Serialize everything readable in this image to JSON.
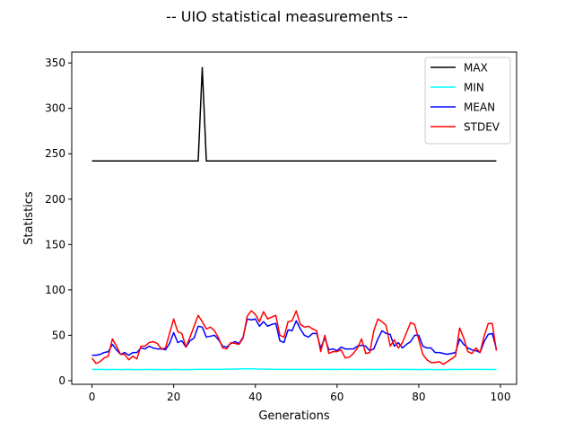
{
  "chart_data": {
    "type": "line",
    "title": "-- UIO statistical measurements --",
    "xlabel": "Generations",
    "ylabel": "Statistics",
    "xlim": [
      -4.95,
      103.95
    ],
    "ylim": [
      -4.0,
      362.0
    ],
    "xticks": [
      0,
      20,
      40,
      60,
      80,
      100
    ],
    "yticks": [
      0,
      50,
      100,
      150,
      200,
      250,
      300,
      350
    ],
    "grid": false,
    "legend_position": "top-right",
    "x": [
      0,
      1,
      2,
      3,
      4,
      5,
      6,
      7,
      8,
      9,
      10,
      11,
      12,
      13,
      14,
      15,
      16,
      17,
      18,
      19,
      20,
      21,
      22,
      23,
      24,
      25,
      26,
      27,
      28,
      29,
      30,
      31,
      32,
      33,
      34,
      35,
      36,
      37,
      38,
      39,
      40,
      41,
      42,
      43,
      44,
      45,
      46,
      47,
      48,
      49,
      50,
      51,
      52,
      53,
      54,
      55,
      56,
      57,
      58,
      59,
      60,
      61,
      62,
      63,
      64,
      65,
      66,
      67,
      68,
      69,
      70,
      71,
      72,
      73,
      74,
      75,
      76,
      77,
      78,
      79,
      80,
      81,
      82,
      83,
      84,
      85,
      86,
      87,
      88,
      89,
      90,
      91,
      92,
      93,
      94,
      95,
      96,
      97,
      98,
      99
    ],
    "series": [
      {
        "name": "MAX",
        "color": "#000000",
        "values": [
          242,
          242,
          242,
          242,
          242,
          242,
          242,
          242,
          242,
          242,
          242,
          242,
          242,
          242,
          242,
          242,
          242,
          242,
          242,
          242,
          242,
          242,
          242,
          242,
          242,
          242,
          242,
          345,
          242,
          242,
          242,
          242,
          242,
          242,
          242,
          242,
          242,
          242,
          242,
          242,
          242,
          242,
          242,
          242,
          242,
          242,
          242,
          242,
          242,
          242,
          242,
          242,
          242,
          242,
          242,
          242,
          242,
          242,
          242,
          242,
          242,
          242,
          242,
          242,
          242,
          242,
          242,
          242,
          242,
          242,
          242,
          242,
          242,
          242,
          242,
          242,
          242,
          242,
          242,
          242,
          242,
          242,
          242,
          242,
          242,
          242,
          242,
          242,
          242,
          242,
          242,
          242,
          242,
          242,
          242,
          242,
          242,
          242,
          242,
          242
        ]
      },
      {
        "name": "MIN",
        "color": "#00ffff",
        "values": [
          12.5,
          12.3,
          12.4,
          12.3,
          12.2,
          12.4,
          12.3,
          12.2,
          12.3,
          12.4,
          12.2,
          12.3,
          12.2,
          12.3,
          12.4,
          12.2,
          12.3,
          12.2,
          12.3,
          12.2,
          12.4,
          12.3,
          12.2,
          12.3,
          12.2,
          12.3,
          12.4,
          12.6,
          12.5,
          12.5,
          12.6,
          12.5,
          12.6,
          12.7,
          12.7,
          12.8,
          12.9,
          13.0,
          13.1,
          13.0,
          12.9,
          12.8,
          12.7,
          12.6,
          12.6,
          12.5,
          12.4,
          12.4,
          12.5,
          12.4,
          12.3,
          12.4,
          12.5,
          12.4,
          12.3,
          12.4,
          12.5,
          12.4,
          12.3,
          12.4,
          12.3,
          12.4,
          12.5,
          12.4,
          12.3,
          12.4,
          12.3,
          12.4,
          12.4,
          12.3,
          12.4,
          12.3,
          12.4,
          12.5,
          12.4,
          12.3,
          12.4,
          12.3,
          12.4,
          12.3,
          12.2,
          12.3,
          12.4,
          12.3,
          12.2,
          12.3,
          12.2,
          12.3,
          12.4,
          12.3,
          12.3,
          12.4,
          12.3,
          12.5,
          12.4,
          12.5,
          12.4,
          12.3,
          12.4,
          12.2
        ]
      },
      {
        "name": "MEAN",
        "color": "#0000ff",
        "values": [
          28,
          28,
          29,
          31,
          32,
          40,
          34,
          29,
          31,
          28,
          31,
          31,
          36,
          35,
          38,
          36,
          35,
          35,
          34,
          41,
          53,
          42,
          44,
          37,
          44,
          47,
          60,
          59,
          48,
          49,
          50,
          45,
          38,
          37,
          41,
          43,
          41,
          48,
          68,
          67,
          68,
          60,
          65,
          60,
          62,
          63,
          44,
          42,
          56,
          55,
          66,
          57,
          50,
          48,
          52,
          52,
          36,
          47,
          34,
          35,
          33,
          37,
          35,
          35,
          35,
          38,
          39,
          38,
          33,
          35,
          46,
          55,
          52,
          51,
          38,
          42,
          36,
          40,
          43,
          50,
          50,
          38,
          36,
          36,
          31,
          31,
          30,
          29,
          30,
          31,
          46,
          40,
          36,
          34,
          33,
          31,
          43,
          51,
          52,
          35
        ]
      },
      {
        "name": "STDEV",
        "color": "#ff0000",
        "values": [
          25,
          19,
          21,
          25,
          27,
          46,
          38,
          29,
          29,
          23,
          27,
          24,
          38,
          38,
          42,
          43,
          41,
          35,
          36,
          52,
          68,
          54,
          52,
          37,
          48,
          60,
          72,
          65,
          57,
          59,
          55,
          47,
          36,
          35,
          42,
          41,
          40,
          47,
          71,
          77,
          73,
          65,
          76,
          68,
          70,
          72,
          50,
          48,
          65,
          66,
          77,
          62,
          59,
          60,
          57,
          55,
          32,
          50,
          30,
          32,
          32,
          34,
          25,
          26,
          30,
          36,
          46,
          30,
          31,
          55,
          68,
          65,
          61,
          38,
          45,
          36,
          42,
          53,
          64,
          62,
          45,
          29,
          23,
          20,
          20,
          21,
          18,
          21,
          24,
          27,
          58,
          47,
          32,
          30,
          36,
          31,
          49,
          63,
          63,
          33
        ]
      }
    ]
  }
}
